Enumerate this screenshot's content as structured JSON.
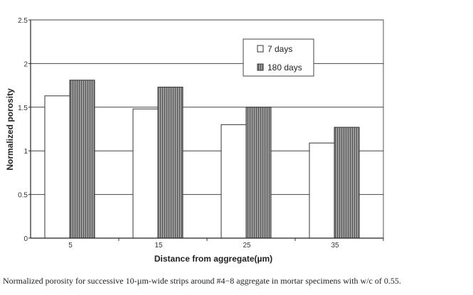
{
  "chart_data": {
    "type": "bar",
    "title": "",
    "xlabel": "Distance from aggregate(µm)",
    "ylabel": "Normalized porosity",
    "categories": [
      "5",
      "15",
      "25",
      "35"
    ],
    "series": [
      {
        "name": "7 days",
        "values": [
          1.63,
          1.48,
          1.3,
          1.09
        ],
        "color": "#ffffff"
      },
      {
        "name": "180 days",
        "values": [
          1.81,
          1.73,
          1.5,
          1.27
        ],
        "color": "#8a8a8a"
      }
    ],
    "ylim": [
      0,
      2.5
    ],
    "yticks": [
      "0",
      "0.5",
      "1",
      "1.5",
      "2",
      "2.5"
    ],
    "grid": true,
    "legend_position": "top-right"
  },
  "caption": "Normalized porosity for successive 10-µm-wide strips around #4−8 aggregate in mortar specimens with w/c of 0.55."
}
